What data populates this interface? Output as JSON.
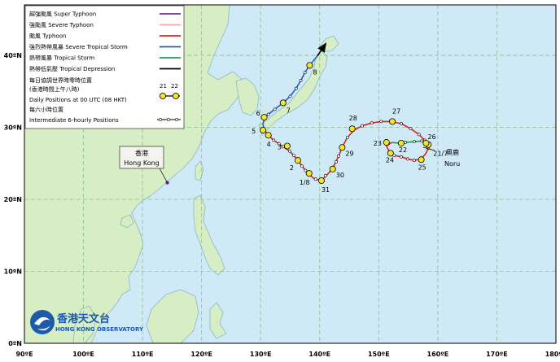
{
  "map": {
    "lon_range": [
      90,
      180
    ],
    "lat_range": [
      0,
      47
    ],
    "longitude_labels": [
      "90ºE",
      "100ºE",
      "110ºE",
      "120ºE",
      "130ºE",
      "140ºE",
      "150ºE",
      "160ºE",
      "170ºE",
      "180ºE"
    ],
    "latitude_labels": [
      "0ºN",
      "10ºN",
      "20ºN",
      "30ºN",
      "40ºN"
    ],
    "colors": {
      "sea": "#cfe9f6",
      "land": "#d7edc3",
      "coast": "#8ab7c9",
      "grid": "#8fbf8f"
    }
  },
  "legend": {
    "items": [
      {
        "label": "超強颱風 Super Typhoon",
        "color": "#6a2da8",
        "style": "line"
      },
      {
        "label": "強颱風 Severe Typhoon",
        "color": "#f2a8ad",
        "style": "line"
      },
      {
        "label": "颱風 Typhoon",
        "color": "#e0201b",
        "style": "line"
      },
      {
        "label": "強烈熱帶風暴 Severe Tropical Storm",
        "color": "#1e5bd6",
        "style": "line"
      },
      {
        "label": "熱帶風暴 Tropical Storm",
        "color": "#1ca14a",
        "style": "line"
      },
      {
        "label": "熱帶低氣壓 Tropical Depression",
        "color": "#000000",
        "style": "line"
      }
    ],
    "daily_title": "每日協調世界時零時位置",
    "daily_title2": "(香港時間上午八時)",
    "daily_en": "Daily Positions at 00 UTC (08 HKT)",
    "daily_sample": [
      "21",
      "22"
    ],
    "six_hour_title": "每六小時位置",
    "six_hour_en": "Intermediate 6-hourly Positions"
  },
  "hong_kong": {
    "zh": "香港",
    "en": "Hong Kong",
    "lon": 114.2,
    "lat": 22.3
  },
  "storm": {
    "zh": "奧鹿",
    "en": "Noru",
    "label_date": "21/7"
  },
  "observatory": {
    "zh": "香港天文台",
    "en": "HONG KONG OBSERVATORY"
  },
  "track": {
    "segments": [
      {
        "color": "#1ca14a",
        "points": [
          [
            158.4,
            27.6
          ],
          [
            157.3,
            28.1
          ],
          [
            156.0,
            28.0
          ],
          [
            154.5,
            27.9
          ],
          [
            153.3,
            27.8
          ],
          [
            152.2,
            27.9
          ]
        ]
      },
      {
        "color": "#e0201b",
        "points": [
          [
            152.2,
            27.9
          ],
          [
            151.3,
            27.4
          ],
          [
            151.8,
            26.6
          ],
          [
            152.6,
            26.1
          ],
          [
            153.8,
            25.9
          ],
          [
            154.9,
            25.6
          ],
          [
            156.0,
            25.4
          ],
          [
            157.2,
            25.6
          ],
          [
            158.0,
            26.4
          ],
          [
            158.4,
            27.1
          ],
          [
            158.3,
            27.7
          ],
          [
            157.8,
            28.2
          ],
          [
            156.8,
            29.0
          ],
          [
            155.4,
            29.8
          ],
          [
            153.8,
            30.5
          ],
          [
            152.0,
            30.8
          ],
          [
            150.4,
            30.8
          ],
          [
            148.8,
            30.6
          ],
          [
            147.2,
            30.2
          ],
          [
            145.8,
            29.6
          ],
          [
            144.7,
            28.6
          ],
          [
            143.9,
            27.4
          ],
          [
            143.2,
            26.0
          ],
          [
            142.5,
            24.8
          ],
          [
            141.7,
            23.8
          ],
          [
            140.8,
            23.0
          ],
          [
            140.0,
            22.6
          ],
          [
            139.0,
            22.9
          ],
          [
            138.0,
            23.6
          ],
          [
            137.2,
            24.4
          ],
          [
            136.5,
            25.2
          ],
          [
            135.7,
            26.0
          ],
          [
            134.9,
            26.7
          ],
          [
            134.0,
            27.2
          ],
          [
            133.1,
            27.7
          ],
          [
            132.2,
            28.2
          ],
          [
            131.3,
            28.9
          ],
          [
            130.6,
            29.6
          ]
        ]
      },
      {
        "color": "#1e5bd6",
        "points": [
          [
            130.6,
            29.6
          ],
          [
            130.4,
            30.4
          ],
          [
            130.6,
            31.2
          ],
          [
            131.3,
            31.8
          ],
          [
            132.4,
            32.5
          ],
          [
            133.8,
            33.4
          ],
          [
            135.0,
            34.3
          ],
          [
            136.0,
            35.4
          ],
          [
            136.8,
            36.5
          ],
          [
            137.5,
            37.6
          ],
          [
            138.3,
            38.6
          ],
          [
            138.9,
            39.2
          ],
          [
            139.6,
            39.9
          ]
        ]
      },
      {
        "color": "#000000",
        "points": [
          [
            139.6,
            39.9
          ],
          [
            140.2,
            40.6
          ],
          [
            141.0,
            41.6
          ]
        ]
      }
    ],
    "daily_points": [
      {
        "label": "21/7",
        "lon": 158.4,
        "lat": 27.6,
        "dx": 6,
        "dy": 14
      },
      {
        "label": "22",
        "lon": 153.8,
        "lat": 27.8,
        "dx": -3,
        "dy": 11
      },
      {
        "label": "23",
        "lon": 151.3,
        "lat": 27.9,
        "dx": -16,
        "dy": 4
      },
      {
        "label": "24",
        "lon": 152.0,
        "lat": 26.4,
        "dx": -6,
        "dy": 11
      },
      {
        "label": "25",
        "lon": 157.2,
        "lat": 25.5,
        "dx": -4,
        "dy": 12
      },
      {
        "label": "26",
        "lon": 158.0,
        "lat": 27.8,
        "dx": 2,
        "dy": -5
      },
      {
        "label": "27",
        "lon": 152.3,
        "lat": 30.8,
        "dx": 0,
        "dy": -10
      },
      {
        "label": "28",
        "lon": 145.5,
        "lat": 29.8,
        "dx": -4,
        "dy": -10
      },
      {
        "label": "29",
        "lon": 143.8,
        "lat": 27.2,
        "dx": 4,
        "dy": 10
      },
      {
        "label": "30",
        "lon": 142.2,
        "lat": 24.2,
        "dx": 4,
        "dy": 10
      },
      {
        "label": "31",
        "lon": 140.3,
        "lat": 22.6,
        "dx": 0,
        "dy": 14
      },
      {
        "label": "1/8",
        "lon": 138.2,
        "lat": 23.6,
        "dx": -12,
        "dy": 14
      },
      {
        "label": "2",
        "lon": 136.3,
        "lat": 25.4,
        "dx": -10,
        "dy": 12
      },
      {
        "label": "3",
        "lon": 134.5,
        "lat": 27.4,
        "dx": -12,
        "dy": 4
      },
      {
        "label": "4",
        "lon": 131.3,
        "lat": 28.9,
        "dx": -2,
        "dy": 14
      },
      {
        "label": "5",
        "lon": 130.4,
        "lat": 29.6,
        "dx": -14,
        "dy": 4
      },
      {
        "label": "6",
        "lon": 130.6,
        "lat": 31.4,
        "dx": -10,
        "dy": -2
      },
      {
        "label": "7",
        "lon": 133.8,
        "lat": 33.4,
        "dx": 4,
        "dy": 12
      },
      {
        "label": "8",
        "lon": 138.3,
        "lat": 38.6,
        "dx": 4,
        "dy": 11
      }
    ],
    "six_hourly_points": [
      [
        157.3,
        28.1
      ],
      [
        156.0,
        28.0
      ],
      [
        154.5,
        27.9
      ],
      [
        152.6,
        26.1
      ],
      [
        153.8,
        25.9
      ],
      [
        154.9,
        25.6
      ],
      [
        156.0,
        25.4
      ],
      [
        158.4,
        27.1
      ],
      [
        157.8,
        28.2
      ],
      [
        156.8,
        29.0
      ],
      [
        155.4,
        29.8
      ],
      [
        153.8,
        30.5
      ],
      [
        150.4,
        30.8
      ],
      [
        148.8,
        30.6
      ],
      [
        147.2,
        30.2
      ],
      [
        144.7,
        28.6
      ],
      [
        143.2,
        26.0
      ],
      [
        142.8,
        25.2
      ],
      [
        141.0,
        23.3
      ],
      [
        139.3,
        22.8
      ],
      [
        137.6,
        24.0
      ],
      [
        137.0,
        24.6
      ],
      [
        135.6,
        26.1
      ],
      [
        134.9,
        26.7
      ],
      [
        133.8,
        27.3
      ],
      [
        133.1,
        27.7
      ],
      [
        132.2,
        28.2
      ],
      [
        131.3,
        31.8
      ],
      [
        132.4,
        32.5
      ],
      [
        135.0,
        34.3
      ],
      [
        136.0,
        35.4
      ],
      [
        136.8,
        36.5
      ],
      [
        137.5,
        37.6
      ]
    ]
  }
}
